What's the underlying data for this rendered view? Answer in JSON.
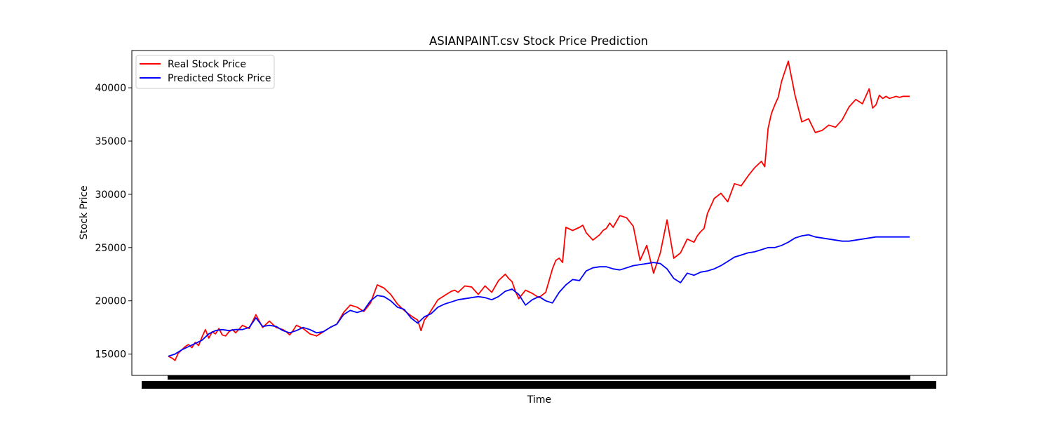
{
  "chart_data": {
    "type": "line",
    "title": "ASIANPAINT.csv Stock Price Prediction",
    "xlabel": "Time",
    "ylabel": "Stock Price",
    "ylim": [
      13000,
      43500
    ],
    "yticks": [
      15000,
      20000,
      25000,
      30000,
      35000,
      40000
    ],
    "xticks_note": "date tick labels overlap and are illegible",
    "grid": false,
    "legend_position": "upper-left",
    "series": [
      {
        "name": "Real Stock Price",
        "color": "#ff0000",
        "x": [
          0,
          6,
          10,
          12,
          15,
          20,
          25,
          30,
          35,
          40,
          45,
          50,
          55,
          60,
          65,
          70,
          75,
          80,
          85,
          90,
          95,
          100,
          110,
          120,
          130,
          140,
          150,
          155,
          160,
          165,
          170,
          175,
          180,
          185,
          190,
          200,
          210,
          220,
          230,
          240,
          250,
          260,
          270,
          280,
          290,
          300,
          310,
          320,
          330,
          340,
          350,
          360,
          370,
          375,
          380,
          385,
          390,
          395,
          400,
          410,
          420,
          425,
          430,
          440,
          450,
          460,
          470,
          480,
          490,
          500,
          505,
          510,
          515,
          520,
          530,
          540,
          550,
          560,
          570,
          575,
          580,
          585,
          590,
          600,
          610,
          615,
          620,
          630,
          640,
          645,
          650,
          655,
          660,
          670,
          680,
          690,
          700,
          710,
          720,
          730,
          740,
          750,
          760,
          770,
          780,
          785,
          790,
          795,
          800,
          810,
          820,
          830,
          840,
          850,
          860,
          870,
          880,
          885,
          890,
          895,
          900,
          905,
          910,
          920,
          930,
          940,
          950,
          960,
          970,
          980,
          990,
          1000,
          1010,
          1020,
          1030,
          1040,
          1045,
          1050,
          1055,
          1060,
          1065,
          1070,
          1075,
          1080,
          1085,
          1090,
          1095,
          1100
        ],
        "y": [
          14800,
          14600,
          14400,
          14700,
          15100,
          15400,
          15700,
          15900,
          15600,
          16100,
          15800,
          16600,
          17300,
          16500,
          17100,
          16900,
          17400,
          16800,
          16700,
          17100,
          17300,
          17000,
          17700,
          17400,
          18700,
          17500,
          18100,
          17800,
          17500,
          17400,
          17300,
          17100,
          16800,
          17200,
          17700,
          17400,
          16900,
          16700,
          17100,
          17500,
          17800,
          18900,
          19600,
          19400,
          19000,
          19800,
          21500,
          21200,
          20600,
          19700,
          19100,
          18600,
          18200,
          17200,
          18200,
          18600,
          19100,
          19600,
          20100,
          20500,
          20900,
          21000,
          20800,
          21400,
          21300,
          20600,
          21400,
          20800,
          21900,
          22500,
          22100,
          21800,
          20900,
          20200,
          21000,
          20700,
          20300,
          20800,
          23000,
          23800,
          24000,
          23600,
          26900,
          26600,
          26900,
          27100,
          26400,
          25700,
          26200,
          26600,
          26800,
          27300,
          26900,
          28000,
          27800,
          27000,
          23800,
          25200,
          22600,
          24500,
          27600,
          24000,
          24500,
          25800,
          25500,
          26100,
          26500,
          26800,
          28200,
          29600,
          30100,
          29300,
          31000,
          30800,
          31700,
          32500,
          33100,
          32600,
          36200,
          37600,
          38400,
          39100,
          40600,
          42500,
          39300,
          36800,
          37100,
          35800,
          36000,
          36500,
          36300,
          37000,
          38200,
          38900,
          38500,
          39900,
          38100,
          38400,
          39300,
          39000,
          39200,
          39000,
          39100,
          39200,
          39100,
          39200,
          39200,
          39200
        ],
        "note": "values estimated from plotted line"
      },
      {
        "name": "Predicted Stock Price",
        "color": "#0000ff",
        "x": [
          0,
          10,
          20,
          30,
          40,
          50,
          60,
          70,
          80,
          90,
          100,
          110,
          120,
          130,
          140,
          150,
          160,
          170,
          180,
          190,
          200,
          210,
          220,
          230,
          240,
          250,
          260,
          270,
          280,
          290,
          300,
          310,
          320,
          330,
          340,
          350,
          360,
          370,
          380,
          390,
          400,
          410,
          420,
          430,
          440,
          450,
          460,
          470,
          480,
          490,
          500,
          510,
          520,
          530,
          540,
          550,
          560,
          570,
          580,
          590,
          600,
          610,
          620,
          630,
          640,
          650,
          660,
          670,
          680,
          690,
          700,
          710,
          720,
          730,
          740,
          750,
          760,
          770,
          780,
          790,
          800,
          810,
          820,
          830,
          840,
          850,
          860,
          870,
          880,
          890,
          900,
          910,
          920,
          930,
          940,
          950,
          960,
          970,
          980,
          990,
          1000,
          1010,
          1020,
          1030,
          1040,
          1050,
          1060,
          1070,
          1080,
          1090,
          1100
        ],
        "y": [
          14800,
          15000,
          15400,
          15700,
          16000,
          16300,
          16900,
          17200,
          17300,
          17200,
          17300,
          17300,
          17500,
          18400,
          17600,
          17700,
          17600,
          17200,
          17000,
          17200,
          17500,
          17300,
          17000,
          17100,
          17500,
          17800,
          18700,
          19100,
          18900,
          19100,
          20000,
          20500,
          20400,
          20000,
          19400,
          19200,
          18400,
          17900,
          18500,
          18800,
          19400,
          19700,
          19900,
          20100,
          20200,
          20300,
          20400,
          20300,
          20100,
          20400,
          20900,
          21100,
          20600,
          19600,
          20100,
          20400,
          20000,
          19800,
          20800,
          21500,
          22000,
          21900,
          22800,
          23100,
          23200,
          23200,
          23000,
          22900,
          23100,
          23300,
          23400,
          23500,
          23600,
          23500,
          23000,
          22100,
          21700,
          22600,
          22400,
          22700,
          22800,
          23000,
          23300,
          23700,
          24100,
          24300,
          24500,
          24600,
          24800,
          25000,
          25000,
          25200,
          25500,
          25900,
          26100,
          26200,
          26000,
          25900,
          25800,
          25700,
          25600,
          25600,
          25700,
          25800,
          25900,
          26000,
          26000,
          26000,
          26000,
          26000,
          26000
        ],
        "note": "values estimated from plotted line"
      }
    ]
  }
}
